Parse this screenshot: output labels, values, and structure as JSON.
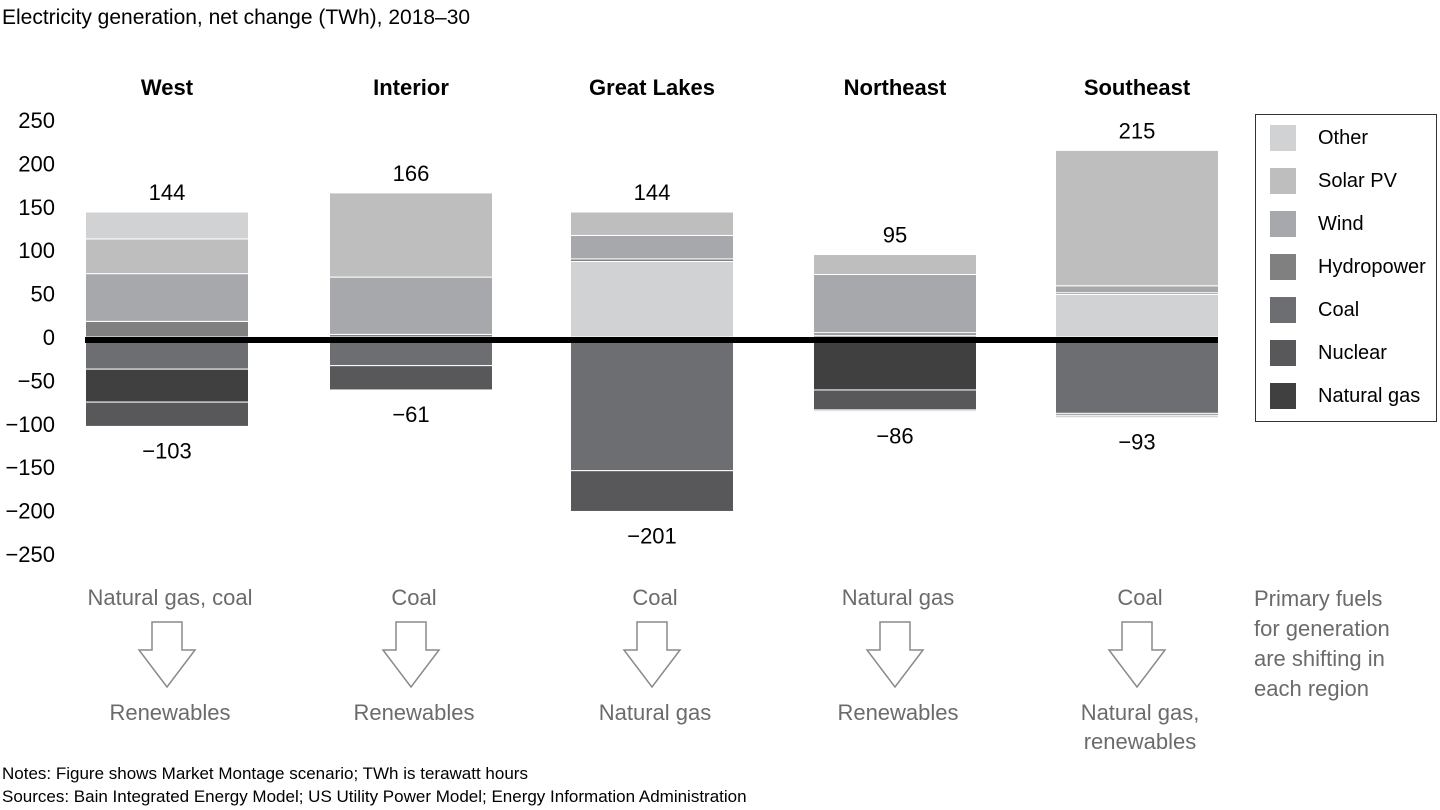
{
  "title": "Electricity generation, net change (TWh), 2018–30",
  "notes": "Notes: Figure shows Market Montage scenario; TWh is terawatt hours",
  "sources": "Sources: Bain Integrated Energy Model; US Utility Power Model; Energy Information Administration",
  "side_note": [
    "Primary fuels",
    "for generation",
    "are shifting in",
    "each region"
  ],
  "colors": {
    "Other": "#d1d2d4",
    "Solar PV": "#bebebe",
    "Wind": "#a7a8ab",
    "Hydropower": "#808080",
    "Coal": "#6d6e71",
    "Nuclear": "#58585a",
    "Natural gas": "#404040",
    "arrow": "#8a8a8a"
  },
  "chart_data": {
    "type": "bar",
    "stacked": true,
    "title": "Electricity generation, net change (TWh), 2018–30",
    "ylim": [
      -250,
      250
    ],
    "yticks": [
      250,
      200,
      150,
      100,
      50,
      0,
      -50,
      -100,
      -150,
      -200,
      -250
    ],
    "ytick_labels": [
      "250",
      "200",
      "150",
      "100",
      "50",
      "0",
      "−50",
      "−100",
      "−150",
      "−200",
      "−250"
    ],
    "grid": false,
    "legend": {
      "placement": "right",
      "entries": [
        "Other",
        "Solar PV",
        "Wind",
        "Hydropower",
        "Coal",
        "Nuclear",
        "Natural gas"
      ]
    },
    "categories": [
      "West",
      "Interior",
      "Great Lakes",
      "Northeast",
      "Southeast"
    ],
    "regions": [
      {
        "name": "West",
        "total_pos": 144,
        "total_neg": -103,
        "pos_label": "144",
        "neg_label": "−103",
        "positive": [
          [
            "Hydropower",
            18
          ],
          [
            "Wind",
            55
          ],
          [
            "Solar PV",
            40
          ],
          [
            "Other",
            31
          ]
        ],
        "negative": [
          [
            "Coal",
            37
          ],
          [
            "Natural gas",
            38
          ],
          [
            "Nuclear",
            28
          ]
        ],
        "from": "Natural gas, coal",
        "to": [
          "Renewables"
        ]
      },
      {
        "name": "Interior",
        "total_pos": 166,
        "total_neg": -61,
        "pos_label": "166",
        "neg_label": "−61",
        "positive": [
          [
            "Hydropower",
            3
          ],
          [
            "Wind",
            66
          ],
          [
            "Solar PV",
            97
          ]
        ],
        "negative": [
          [
            "Coal",
            33
          ],
          [
            "Nuclear",
            28
          ]
        ],
        "from": "Coal",
        "to": [
          "Renewables"
        ]
      },
      {
        "name": "Great Lakes",
        "total_pos": 144,
        "total_neg": -201,
        "pos_label": "144",
        "neg_label": "−201",
        "positive": [
          [
            "Other",
            87
          ],
          [
            "Hydropower",
            3
          ],
          [
            "Wind",
            27
          ],
          [
            "Solar PV",
            27
          ]
        ],
        "negative": [
          [
            "Coal",
            154
          ],
          [
            "Nuclear",
            47
          ]
        ],
        "from": "Coal",
        "to": [
          "Natural gas"
        ]
      },
      {
        "name": "Northeast",
        "total_pos": 95,
        "total_neg": -86,
        "pos_label": "95",
        "neg_label": "−86",
        "positive": [
          [
            "Coal",
            2
          ],
          [
            "Hydropower",
            3
          ],
          [
            "Wind",
            67
          ],
          [
            "Solar PV",
            23
          ]
        ],
        "negative": [
          [
            "Natural gas",
            61
          ],
          [
            "Nuclear",
            23
          ],
          [
            "Other",
            2
          ]
        ],
        "from": "Natural gas",
        "to": [
          "Renewables"
        ]
      },
      {
        "name": "Southeast",
        "total_pos": 215,
        "total_neg": -93,
        "pos_label": "215",
        "neg_label": "−93",
        "positive": [
          [
            "Other",
            49
          ],
          [
            "Hydropower",
            2
          ],
          [
            "Wind",
            8
          ],
          [
            "Solar PV",
            156
          ]
        ],
        "negative": [
          [
            "Coal",
            88
          ],
          [
            "Nuclear",
            2
          ],
          [
            "Other",
            3
          ]
        ],
        "from": "Coal",
        "to": [
          "Natural gas,",
          "renewables"
        ]
      }
    ]
  }
}
